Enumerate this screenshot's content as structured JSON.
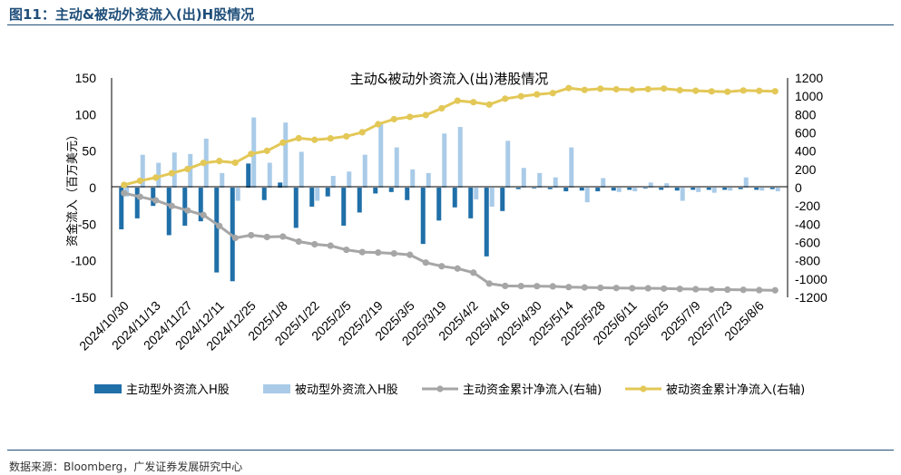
{
  "figure_title": "图11：主动&被动外资流入(出)H股情况",
  "source": "数据来源：Bloomberg，广发证券发展研究中心",
  "colors": {
    "active_bar": "#1f6fa8",
    "passive_bar": "#a9cbe8",
    "active_line": "#a6a6a6",
    "passive_line": "#e3c857",
    "title_blue": "#1f4e79"
  },
  "chart_data": {
    "type": "bar+line",
    "title": "主动&被动外资流入(出)港股情况",
    "ylabel": "资金流入（百万美元）",
    "y_left_lim": [
      -150,
      150
    ],
    "y_left_ticks": [
      -150,
      -100,
      -50,
      0,
      50,
      100,
      150
    ],
    "y_right_lim": [
      -1200,
      1200
    ],
    "y_right_ticks": [
      -1200,
      -1000,
      -800,
      -600,
      -400,
      -200,
      0,
      200,
      400,
      600,
      800,
      1000,
      1200
    ],
    "x_tick_labels": [
      "2024/10/30",
      "2024/11/13",
      "2024/11/27",
      "2024/12/11",
      "2024/12/25",
      "2025/1/8",
      "2025/1/22",
      "2025/2/5",
      "2025/2/19",
      "2025/3/5",
      "2025/3/19",
      "2025/4/2",
      "2025/4/16",
      "2025/4/30",
      "2025/5/14",
      "2025/5/28",
      "2025/6/11",
      "2025/6/25",
      "2025/7/9",
      "2025/7/23",
      "2025/8/6"
    ],
    "weeks": 42,
    "legend": [
      "主动型外资流入H股",
      "被动型外资流入H股",
      "主动资金累计净流入(右轴)",
      "被动资金累计净流入(右轴)"
    ],
    "legend_position": "bottom",
    "series": [
      {
        "name": "主动型外资流入H股",
        "axis": "left",
        "kind": "bar",
        "values": [
          -57,
          -42,
          -25,
          -65,
          -52,
          -46,
          -116,
          -128,
          33,
          -17,
          7,
          -55,
          -26,
          -12,
          -52,
          -34,
          -8,
          -6,
          -17,
          -77,
          -45,
          -27,
          -42,
          -94,
          -32,
          -2,
          -1,
          -2,
          -5,
          -4,
          -5,
          -4,
          -3,
          -1,
          -3,
          -4,
          -3,
          -3,
          -3,
          -2,
          -3,
          -2
        ]
      },
      {
        "name": "被动型外资流入H股",
        "axis": "left",
        "kind": "bar",
        "values": [
          -12,
          45,
          34,
          48,
          46,
          67,
          20,
          -18,
          96,
          34,
          89,
          49,
          -18,
          16,
          22,
          45,
          88,
          55,
          25,
          20,
          74,
          83,
          -16,
          -26,
          64,
          27,
          20,
          14,
          55,
          -20,
          13,
          -6,
          -5,
          7,
          6,
          -18,
          -6,
          -7,
          -4,
          14,
          -4,
          -5
        ]
      },
      {
        "name": "主动资金累计净流入(右轴)",
        "axis": "right",
        "kind": "line",
        "values": [
          -60,
          -100,
          -140,
          -200,
          -250,
          -300,
          -420,
          -550,
          -520,
          -540,
          -535,
          -590,
          -620,
          -635,
          -680,
          -705,
          -710,
          -720,
          -735,
          -820,
          -860,
          -885,
          -930,
          -1050,
          -1075,
          -1077,
          -1078,
          -1080,
          -1088,
          -1092,
          -1095,
          -1098,
          -1100,
          -1101,
          -1104,
          -1108,
          -1111,
          -1114,
          -1116,
          -1118,
          -1121,
          -1123
        ]
      },
      {
        "name": "被动资金累计净流入(右轴)",
        "axis": "right",
        "kind": "line",
        "values": [
          30,
          75,
          110,
          158,
          204,
          271,
          291,
          273,
          369,
          403,
          492,
          541,
          523,
          539,
          561,
          606,
          694,
          749,
          774,
          794,
          868,
          951,
          935,
          909,
          973,
          1000,
          1020,
          1034,
          1089,
          1069,
          1082,
          1076,
          1071,
          1078,
          1084,
          1066,
          1060,
          1053,
          1049,
          1063,
          1059,
          1054
        ]
      }
    ]
  }
}
